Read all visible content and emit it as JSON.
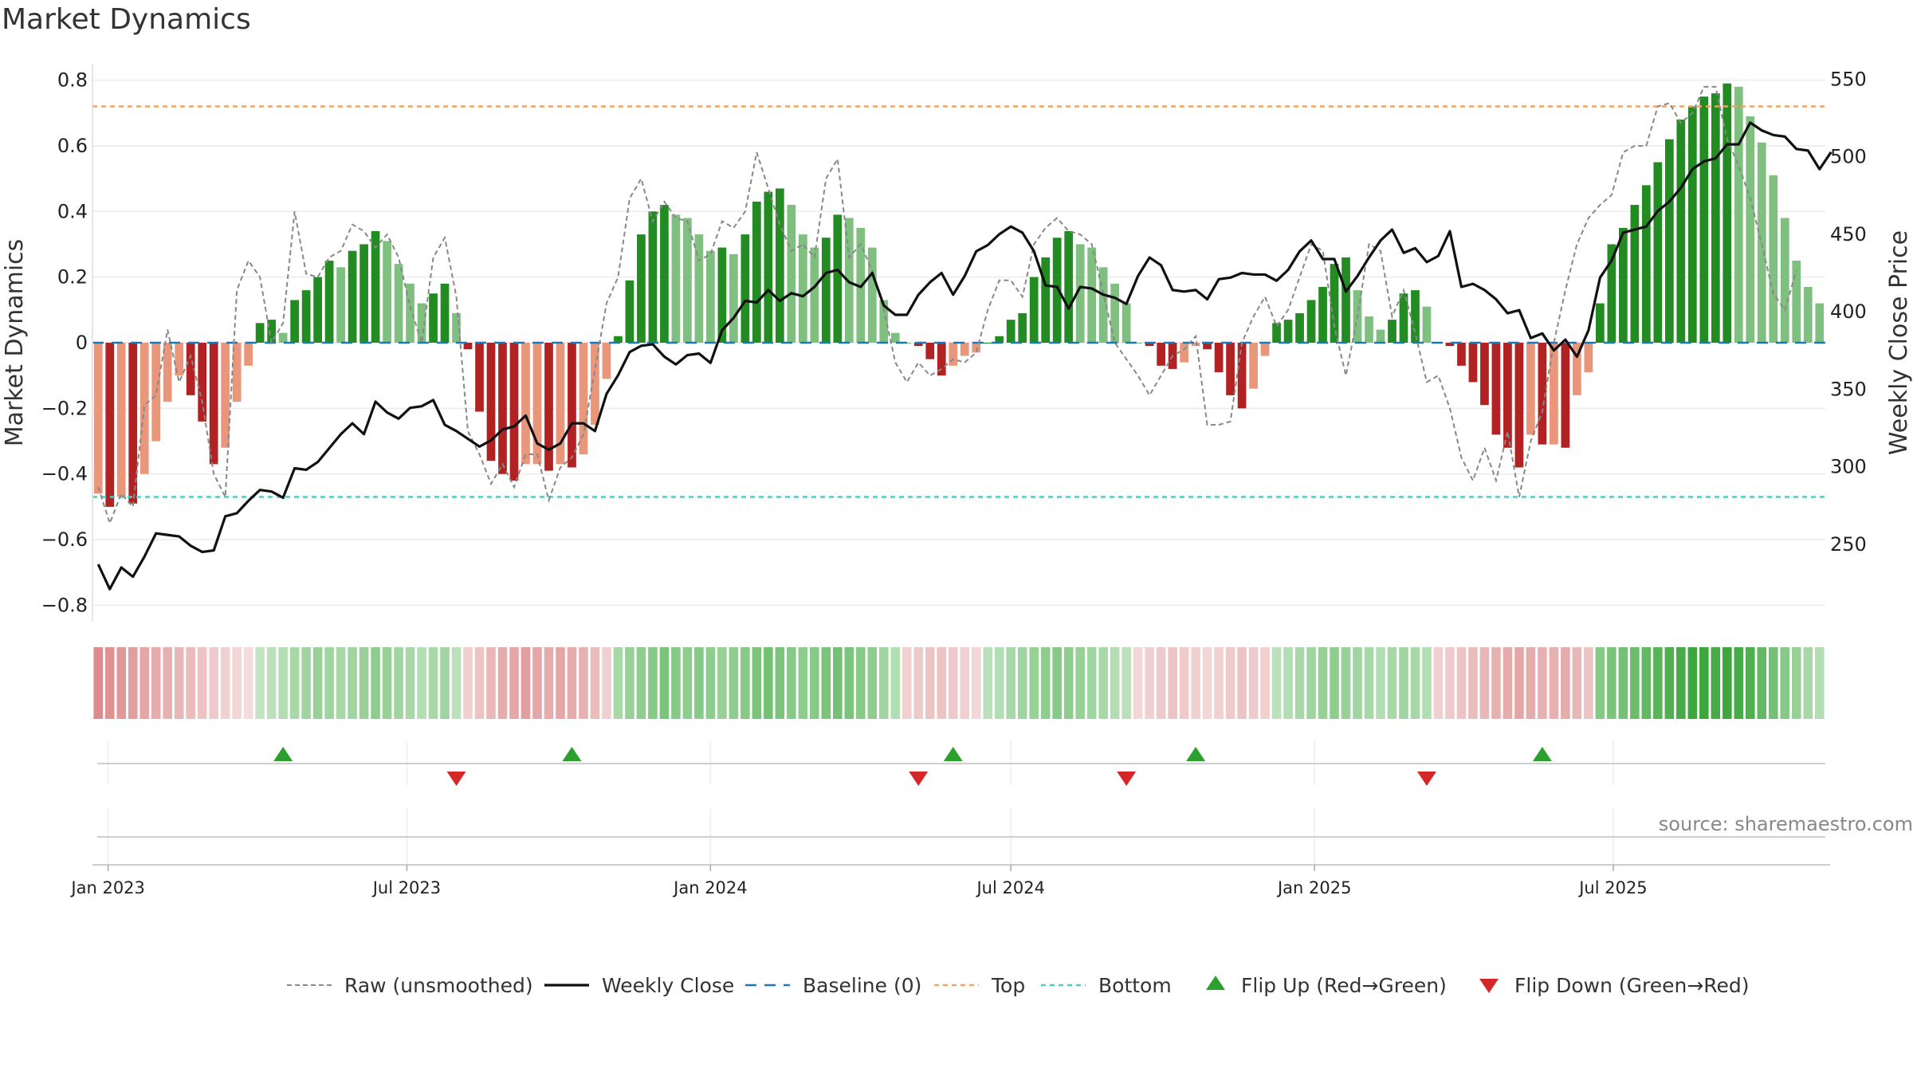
{
  "title": "Market Dynamics",
  "source": "source: sharemaestro.com",
  "colors": {
    "strong_green": "#228B22",
    "light_green": "#7FBF7F",
    "strong_red": "#B22222",
    "light_red": "#E9967A",
    "raw": "#888888",
    "close": "#111111",
    "baseline": "#1F77B4",
    "top": "#F4A261",
    "bottom": "#4ECDC4",
    "flip_up": "#2CA02C",
    "flip_down": "#D62728"
  },
  "chart_data": {
    "type": "bar",
    "title": "Market Dynamics",
    "ylabel": "Market Dynamics",
    "y2label": "Weekly Close Price",
    "ylim": [
      -0.85,
      0.85
    ],
    "y2lim": [
      200,
      560
    ],
    "yticks": [
      -0.8,
      -0.6,
      -0.4,
      -0.2,
      0,
      0.2,
      0.4,
      0.6,
      0.8
    ],
    "yticklabels": [
      "−0.8",
      "−0.6",
      "−0.4",
      "−0.2",
      "0",
      "0.2",
      "0.4",
      "0.6",
      "0.8"
    ],
    "y2ticks": [
      250,
      300,
      350,
      400,
      450,
      500,
      550
    ],
    "y2ticklabels": [
      "250",
      "300",
      "350",
      "400",
      "450",
      "500",
      "550"
    ],
    "xticks": [
      "Jan 2023",
      "Jul 2023",
      "Jan 2024",
      "Jul 2024",
      "Jan 2025",
      "Jul 2025"
    ],
    "start_date": "2022-12-26",
    "top_line": 0.72,
    "bottom_line": -0.47,
    "legend": [
      "Raw (unsmoothed)",
      "Weekly Close",
      "Baseline (0)",
      "Top",
      "Bottom",
      "Flip Up (Red→Green)",
      "Flip Down (Green→Red)"
    ],
    "legend_position": "bottom-center",
    "grid": true,
    "series": [
      {
        "name": "Market Dynamics",
        "values": [
          -0.46,
          -0.5,
          -0.47,
          -0.49,
          -0.4,
          -0.3,
          -0.18,
          -0.1,
          -0.16,
          -0.24,
          -0.37,
          -0.32,
          -0.18,
          -0.07,
          0.06,
          0.07,
          0.03,
          0.13,
          0.16,
          0.2,
          0.25,
          0.23,
          0.28,
          0.3,
          0.34,
          0.31,
          0.24,
          0.18,
          0.12,
          0.15,
          0.18,
          0.09,
          -0.02,
          -0.21,
          -0.36,
          -0.4,
          -0.42,
          -0.37,
          -0.37,
          -0.39,
          -0.37,
          -0.38,
          -0.34,
          -0.25,
          -0.11,
          0.02,
          0.19,
          0.33,
          0.4,
          0.42,
          0.39,
          0.38,
          0.33,
          0.28,
          0.29,
          0.27,
          0.33,
          0.43,
          0.46,
          0.47,
          0.42,
          0.33,
          0.29,
          0.32,
          0.39,
          0.38,
          0.35,
          0.29,
          0.13,
          0.03,
          0,
          -0.01,
          -0.05,
          -0.1,
          -0.07,
          -0.04,
          -0.03,
          0,
          0.02,
          0.07,
          0.09,
          0.2,
          0.26,
          0.32,
          0.34,
          0.3,
          0.29,
          0.23,
          0.18,
          0.12,
          0,
          -0.01,
          -0.07,
          -0.08,
          -0.06,
          -0.01,
          -0.02,
          -0.09,
          -0.16,
          -0.2,
          -0.14,
          -0.04,
          0.06,
          0.07,
          0.09,
          0.13,
          0.17,
          0.24,
          0.26,
          0.16,
          0.08,
          0.04,
          0.07,
          0.15,
          0.16,
          0.11,
          0,
          -0.01,
          -0.07,
          -0.12,
          -0.19,
          -0.28,
          -0.32,
          -0.38,
          -0.28,
          -0.31,
          -0.31,
          -0.32,
          -0.16,
          -0.09,
          0.12,
          0.3,
          0.35,
          0.42,
          0.48,
          0.55,
          0.62,
          0.68,
          0.72,
          0.75,
          0.76,
          0.79,
          0.78,
          0.69,
          0.61,
          0.51,
          0.38,
          0.25,
          0.17,
          0.12
        ]
      },
      {
        "name": "Raw (unsmoothed)",
        "values": [
          -0.44,
          -0.55,
          -0.46,
          -0.5,
          -0.19,
          -0.16,
          0.04,
          -0.12,
          -0.04,
          -0.18,
          -0.4,
          -0.47,
          0.16,
          0.25,
          0.2,
          0.0,
          0.06,
          0.4,
          0.21,
          0.2,
          0.26,
          0.28,
          0.36,
          0.34,
          0.29,
          0.33,
          0.26,
          0.11,
          0.0,
          0.26,
          0.32,
          0.14,
          -0.27,
          -0.34,
          -0.43,
          -0.37,
          -0.44,
          -0.34,
          -0.34,
          -0.48,
          -0.38,
          -0.35,
          -0.28,
          -0.08,
          0.12,
          0.2,
          0.44,
          0.5,
          0.37,
          0.43,
          0.38,
          0.37,
          0.25,
          0.27,
          0.37,
          0.35,
          0.4,
          0.58,
          0.47,
          0.36,
          0.28,
          0.3,
          0.26,
          0.5,
          0.56,
          0.26,
          0.3,
          0.22,
          0.1,
          -0.06,
          -0.12,
          -0.06,
          -0.1,
          -0.08,
          -0.05,
          -0.06,
          -0.03,
          0.1,
          0.19,
          0.19,
          0.14,
          0.3,
          0.35,
          0.38,
          0.34,
          0.33,
          0.3,
          0.15,
          0.0,
          -0.05,
          -0.1,
          -0.16,
          -0.1,
          -0.04,
          -0.02,
          0.02,
          -0.25,
          -0.25,
          -0.24,
          0.0,
          0.08,
          0.14,
          0.05,
          0.1,
          0.2,
          0.3,
          0.28,
          0.05,
          -0.1,
          0.08,
          0.3,
          0.28,
          0.08,
          0.16,
          0.03,
          -0.12,
          -0.1,
          -0.2,
          -0.35,
          -0.42,
          -0.32,
          -0.42,
          -0.27,
          -0.47,
          -0.3,
          -0.21,
          0.0,
          0.16,
          0.3,
          0.38,
          0.42,
          0.45,
          0.58,
          0.6,
          0.6,
          0.72,
          0.73,
          0.67,
          0.7,
          0.78,
          0.78,
          0.62,
          0.54,
          0.44,
          0.3,
          0.15,
          0.1,
          0.22
        ]
      },
      {
        "name": "Weekly Close",
        "values": [
          237,
          221,
          235,
          229,
          242,
          257,
          256,
          255,
          249,
          245,
          246,
          268,
          270,
          278,
          285,
          284,
          280,
          299,
          298,
          303,
          312,
          321,
          328,
          321,
          342,
          335,
          331,
          338,
          339,
          343,
          327,
          323,
          318,
          313,
          317,
          324,
          326,
          333,
          315,
          311,
          315,
          328,
          328,
          323,
          347,
          359,
          374,
          378,
          379,
          371,
          366,
          372,
          373,
          367,
          388,
          396,
          407,
          406,
          414,
          407,
          412,
          410,
          416,
          425,
          427,
          419,
          416,
          425,
          404,
          398,
          398,
          411,
          419,
          425,
          411,
          423,
          439,
          443,
          450,
          455,
          451,
          439,
          417,
          416,
          402,
          416,
          415,
          411,
          409,
          405,
          423,
          435,
          430,
          414,
          413,
          414,
          408,
          421,
          422,
          425,
          424,
          424,
          420,
          427,
          439,
          446,
          434,
          434,
          413,
          423,
          435,
          446,
          453,
          438,
          441,
          432,
          436,
          452,
          416,
          418,
          414,
          408,
          399,
          401,
          383,
          386,
          375,
          382,
          371,
          388,
          422,
          433,
          451,
          453,
          455,
          465,
          471,
          480,
          492,
          497,
          499,
          508,
          508,
          522,
          517,
          514,
          513,
          505,
          504,
          492,
          503
        ]
      }
    ],
    "regime_strip": [
      -0.75,
      -0.7,
      -0.65,
      -0.6,
      -0.55,
      -0.5,
      -0.45,
      -0.4,
      -0.35,
      -0.3,
      -0.25,
      -0.2,
      -0.15,
      -0.1,
      0.15,
      0.2,
      0.25,
      0.3,
      0.35,
      0.4,
      0.35,
      0.3,
      0.35,
      0.4,
      0.45,
      0.4,
      0.35,
      0.3,
      0.25,
      0.3,
      0.35,
      0.2,
      -0.2,
      -0.3,
      -0.4,
      -0.5,
      -0.55,
      -0.6,
      -0.55,
      -0.5,
      -0.55,
      -0.5,
      -0.45,
      -0.35,
      -0.2,
      0.3,
      0.4,
      0.45,
      0.5,
      0.55,
      0.5,
      0.45,
      0.5,
      0.45,
      0.4,
      0.45,
      0.5,
      0.55,
      0.6,
      0.55,
      0.5,
      0.45,
      0.5,
      0.55,
      0.6,
      0.55,
      0.5,
      0.45,
      0.35,
      0.25,
      -0.2,
      -0.25,
      -0.3,
      -0.3,
      -0.25,
      -0.2,
      -0.15,
      0.2,
      0.25,
      0.3,
      0.35,
      0.4,
      0.45,
      0.5,
      0.45,
      0.4,
      0.35,
      0.3,
      0.25,
      0.2,
      -0.15,
      -0.2,
      -0.25,
      -0.3,
      -0.25,
      -0.2,
      -0.15,
      -0.2,
      -0.25,
      -0.3,
      -0.25,
      -0.2,
      0.2,
      0.25,
      0.3,
      0.35,
      0.4,
      0.45,
      0.4,
      0.35,
      0.3,
      0.25,
      0.3,
      0.35,
      0.3,
      0.25,
      -0.2,
      -0.25,
      -0.3,
      -0.35,
      -0.4,
      -0.45,
      -0.5,
      -0.55,
      -0.5,
      -0.45,
      -0.45,
      -0.5,
      -0.4,
      -0.3,
      0.5,
      0.55,
      0.6,
      0.65,
      0.7,
      0.75,
      0.8,
      0.85,
      0.9,
      0.9,
      0.85,
      0.9,
      0.85,
      0.8,
      0.7,
      0.6,
      0.5,
      0.4,
      0.3,
      0.25
    ],
    "flip_up": [
      "2023-04-17",
      "2023-10-09",
      "2024-05-27",
      "2024-10-21",
      "2025-05-19"
    ],
    "flip_down": [
      "2023-07-31",
      "2024-05-06",
      "2024-09-09",
      "2025-03-10"
    ]
  }
}
